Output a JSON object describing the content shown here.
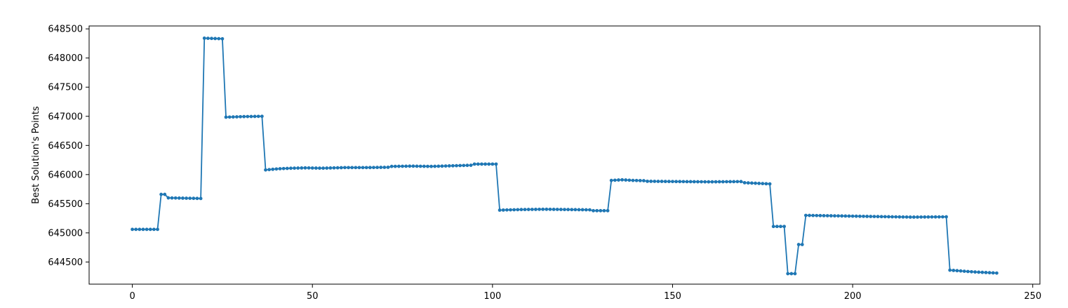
{
  "chart_data": {
    "type": "line",
    "title": "",
    "xlabel": "",
    "ylabel": "Best Solution's Points",
    "xlim": [
      -12,
      252
    ],
    "ylim": [
      644120,
      648550
    ],
    "xticks": [
      0,
      50,
      100,
      150,
      200,
      250
    ],
    "yticks": [
      644500,
      645000,
      645500,
      646000,
      646500,
      647000,
      647500,
      648000,
      648500
    ],
    "grid": false,
    "legend": "none",
    "line_color": "#1f77b4",
    "marker": "circle",
    "segments": [
      {
        "from": 0,
        "to": 7,
        "y": [
          645060
        ]
      },
      {
        "from": 8,
        "to": 9,
        "y": [
          645660
        ]
      },
      {
        "from": 10,
        "to": 19,
        "y": [
          645600,
          645590
        ]
      },
      {
        "from": 20,
        "to": 25,
        "y": [
          648340,
          648330
        ]
      },
      {
        "from": 26,
        "to": 36,
        "y": [
          646985,
          646995,
          647000
        ]
      },
      {
        "from": 37,
        "to": 52,
        "y": [
          646080,
          646100,
          646110,
          646115,
          646110
        ]
      },
      {
        "from": 53,
        "to": 71,
        "y": [
          646110,
          646120,
          646120,
          646125
        ]
      },
      {
        "from": 72,
        "to": 94,
        "y": [
          646140,
          646145,
          646140,
          646150,
          646160
        ]
      },
      {
        "from": 95,
        "to": 101,
        "y": [
          646180
        ]
      },
      {
        "from": 102,
        "to": 127,
        "y": [
          645390,
          645400,
          645405,
          645400,
          645395
        ]
      },
      {
        "from": 128,
        "to": 132,
        "y": [
          645380
        ]
      },
      {
        "from": 133,
        "to": 142,
        "y": [
          645900,
          645910,
          645900,
          645895
        ]
      },
      {
        "from": 143,
        "to": 169,
        "y": [
          645885,
          645880,
          645875,
          645880
        ]
      },
      {
        "from": 170,
        "to": 177,
        "y": [
          645860,
          645840
        ]
      },
      {
        "from": 178,
        "to": 181,
        "y": [
          645110
        ]
      },
      {
        "from": 182,
        "to": 184,
        "y": [
          644300
        ]
      },
      {
        "from": 185,
        "to": 186,
        "y": [
          644800
        ]
      },
      {
        "from": 187,
        "to": 226,
        "y": [
          645300,
          645290,
          645280,
          645270,
          645275
        ]
      },
      {
        "from": 227,
        "to": 240,
        "y": [
          644360,
          644330,
          644310
        ]
      }
    ]
  }
}
